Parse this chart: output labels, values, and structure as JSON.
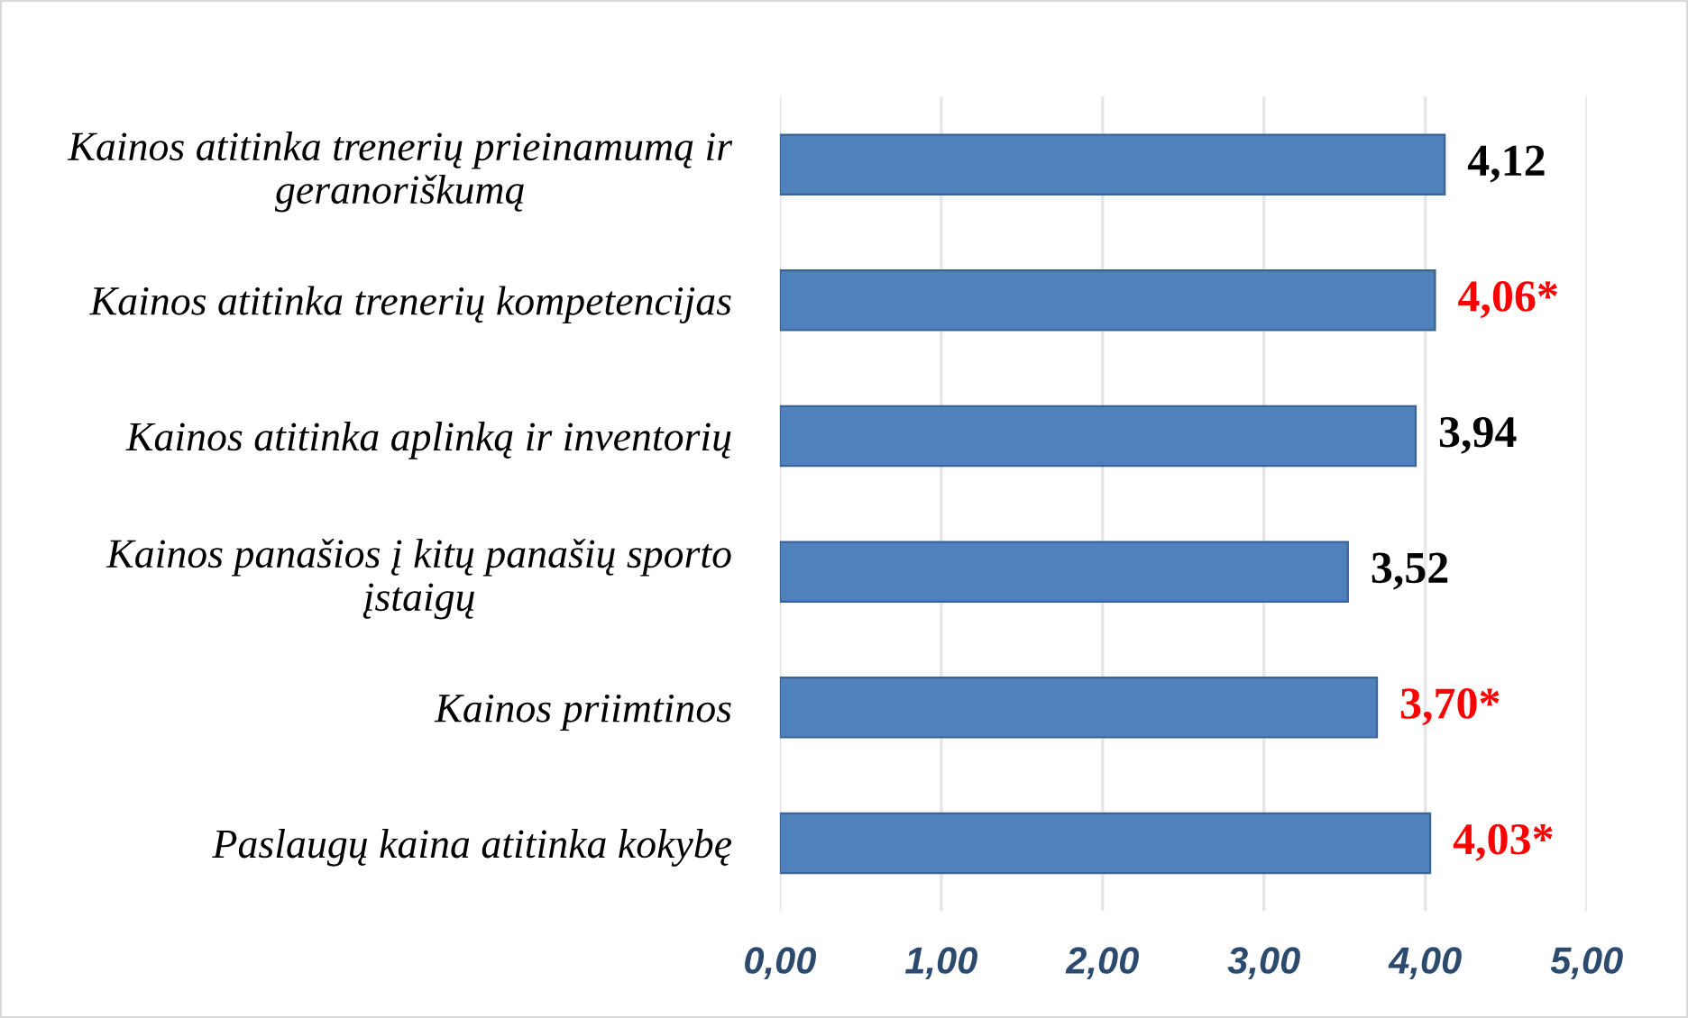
{
  "chart_data": {
    "type": "bar",
    "orientation": "horizontal",
    "categories": [
      "Kainos atitinka trenerių prieinamumą ir\ngeranoriškumą",
      "Kainos atitinka trenerių kompetencijas",
      "Kainos atitinka aplinką ir inventorių",
      "Kainos panašios į kitų panašių sporto\nįstaigų",
      "Kainos priimtinos",
      "Paslaugų kaina atitinka kokybę"
    ],
    "series": [
      {
        "color": "#4f81bd",
        "values": [
          4.12,
          null,
          3.94,
          3.52,
          null,
          null
        ],
        "value_labels": [
          "4,12",
          null,
          "3,94",
          "3,52",
          null,
          null
        ]
      },
      {
        "color": "#4f81bd",
        "values": [
          null,
          4.06,
          null,
          null,
          3.7,
          4.03
        ],
        "value_labels": [
          null,
          "4,06*",
          null,
          null,
          "3,70*",
          "4,03*"
        ]
      }
    ],
    "xlim": [
      0,
      5
    ],
    "xticks": [
      {
        "value": 0,
        "label": "0,00"
      },
      {
        "value": 1,
        "label": "1,00"
      },
      {
        "value": 2,
        "label": "2,00"
      },
      {
        "value": 3,
        "label": "3,00"
      },
      {
        "value": 4,
        "label": "4,00"
      },
      {
        "value": 5,
        "label": "5,00"
      }
    ],
    "grid": "x"
  }
}
